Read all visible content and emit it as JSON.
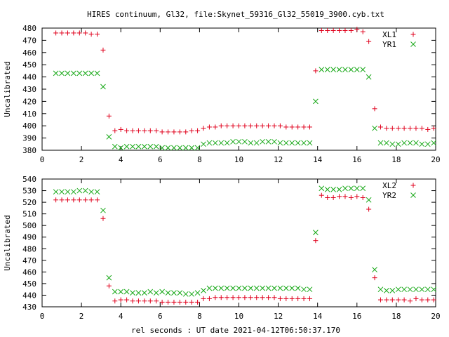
{
  "title": "HIRES continuum, Gl32, file:Skynet_59316_Gl32_55019_3900.cyb.txt",
  "xlabel": "rel seconds : UT date 2021-04-12T06:50:37.170",
  "colors": {
    "red": "#e0001c",
    "green": "#16a816"
  },
  "chart_data": [
    {
      "type": "scatter",
      "ylabel": "Uncalibrated",
      "xlim": [
        0,
        20
      ],
      "ylim": [
        380,
        480
      ],
      "xticks": [
        0,
        2,
        4,
        6,
        8,
        10,
        12,
        14,
        16,
        18,
        20
      ],
      "yticks": [
        380,
        390,
        400,
        410,
        420,
        430,
        440,
        450,
        460,
        470,
        480
      ],
      "legend_position": "top-right",
      "series": [
        {
          "name": "XL1",
          "marker": "plus",
          "color": "#e0001c",
          "x": [
            0.7,
            1.0,
            1.3,
            1.6,
            1.9,
            2.2,
            2.5,
            2.8,
            3.1,
            3.4,
            3.7,
            4.0,
            4.3,
            4.6,
            4.9,
            5.2,
            5.5,
            5.8,
            6.1,
            6.4,
            6.7,
            7.0,
            7.3,
            7.6,
            7.9,
            8.2,
            8.5,
            8.8,
            9.1,
            9.4,
            9.7,
            10.0,
            10.3,
            10.6,
            10.9,
            11.2,
            11.5,
            11.8,
            12.1,
            12.4,
            12.7,
            13.0,
            13.3,
            13.6,
            13.9,
            14.2,
            14.5,
            14.8,
            15.1,
            15.4,
            15.7,
            16.0,
            16.3,
            16.6,
            16.9,
            17.2,
            17.5,
            17.8,
            18.1,
            18.4,
            18.7,
            19.0,
            19.3,
            19.6,
            19.9
          ],
          "y": [
            476,
            476,
            476,
            476,
            476,
            476,
            475,
            475,
            462,
            408,
            396,
            397,
            396,
            396,
            396,
            396,
            396,
            396,
            395,
            395,
            395,
            395,
            395,
            396,
            396,
            398,
            399,
            399,
            400,
            400,
            400,
            400,
            400,
            400,
            400,
            400,
            400,
            400,
            400,
            399,
            399,
            399,
            399,
            399,
            445,
            478,
            478,
            478,
            478,
            478,
            478,
            479,
            477,
            469,
            414,
            399,
            398,
            398,
            398,
            398,
            398,
            398,
            398,
            397,
            398
          ]
        },
        {
          "name": "YR1",
          "marker": "cross",
          "color": "#16a816",
          "x": [
            0.7,
            1.0,
            1.3,
            1.6,
            1.9,
            2.2,
            2.5,
            2.8,
            3.1,
            3.4,
            3.7,
            4.0,
            4.3,
            4.6,
            4.9,
            5.2,
            5.5,
            5.8,
            6.1,
            6.4,
            6.7,
            7.0,
            7.3,
            7.6,
            7.9,
            8.2,
            8.5,
            8.8,
            9.1,
            9.4,
            9.7,
            10.0,
            10.3,
            10.6,
            10.9,
            11.2,
            11.5,
            11.8,
            12.1,
            12.4,
            12.7,
            13.0,
            13.3,
            13.6,
            13.9,
            14.2,
            14.5,
            14.8,
            15.1,
            15.4,
            15.7,
            16.0,
            16.3,
            16.6,
            16.9,
            17.2,
            17.5,
            17.8,
            18.1,
            18.4,
            18.7,
            19.0,
            19.3,
            19.6,
            19.9
          ],
          "y": [
            443,
            443,
            443,
            443,
            443,
            443,
            443,
            443,
            432,
            391,
            383,
            382,
            383,
            383,
            383,
            383,
            383,
            383,
            382,
            382,
            382,
            382,
            382,
            382,
            382,
            385,
            386,
            386,
            386,
            386,
            387,
            387,
            387,
            386,
            386,
            387,
            387,
            387,
            386,
            386,
            386,
            386,
            386,
            386,
            420,
            446,
            446,
            446,
            446,
            446,
            446,
            446,
            446,
            440,
            398,
            386,
            386,
            385,
            385,
            386,
            386,
            386,
            385,
            385,
            386
          ]
        }
      ]
    },
    {
      "type": "scatter",
      "ylabel": "Uncalibrated",
      "xlim": [
        0,
        20
      ],
      "ylim": [
        430,
        540
      ],
      "xticks": [
        0,
        2,
        4,
        6,
        8,
        10,
        12,
        14,
        16,
        18,
        20
      ],
      "yticks": [
        430,
        440,
        450,
        460,
        470,
        480,
        490,
        500,
        510,
        520,
        530,
        540
      ],
      "legend_position": "top-right",
      "series": [
        {
          "name": "XL2",
          "marker": "plus",
          "color": "#e0001c",
          "x": [
            0.7,
            1.0,
            1.3,
            1.6,
            1.9,
            2.2,
            2.5,
            2.8,
            3.1,
            3.4,
            3.7,
            4.0,
            4.3,
            4.6,
            4.9,
            5.2,
            5.5,
            5.8,
            6.1,
            6.4,
            6.7,
            7.0,
            7.3,
            7.6,
            7.9,
            8.2,
            8.5,
            8.8,
            9.1,
            9.4,
            9.7,
            10.0,
            10.3,
            10.6,
            10.9,
            11.2,
            11.5,
            11.8,
            12.1,
            12.4,
            12.7,
            13.0,
            13.3,
            13.6,
            13.9,
            14.2,
            14.5,
            14.8,
            15.1,
            15.4,
            15.7,
            16.0,
            16.3,
            16.6,
            16.9,
            17.2,
            17.5,
            17.8,
            18.1,
            18.4,
            18.7,
            19.0,
            19.3,
            19.6,
            19.9
          ],
          "y": [
            522,
            522,
            522,
            522,
            522,
            522,
            522,
            522,
            506,
            448,
            435,
            436,
            436,
            435,
            435,
            435,
            435,
            435,
            434,
            434,
            434,
            434,
            434,
            434,
            434,
            437,
            437,
            438,
            438,
            438,
            438,
            438,
            438,
            438,
            438,
            438,
            438,
            438,
            437,
            437,
            437,
            437,
            437,
            437,
            487,
            526,
            524,
            524,
            525,
            525,
            524,
            525,
            524,
            514,
            455,
            436,
            436,
            436,
            436,
            436,
            435,
            437,
            436,
            436,
            436
          ]
        },
        {
          "name": "YR2",
          "marker": "cross",
          "color": "#16a816",
          "x": [
            0.7,
            1.0,
            1.3,
            1.6,
            1.9,
            2.2,
            2.5,
            2.8,
            3.1,
            3.4,
            3.7,
            4.0,
            4.3,
            4.6,
            4.9,
            5.2,
            5.5,
            5.8,
            6.1,
            6.4,
            6.7,
            7.0,
            7.3,
            7.6,
            7.9,
            8.2,
            8.5,
            8.8,
            9.1,
            9.4,
            9.7,
            10.0,
            10.3,
            10.6,
            10.9,
            11.2,
            11.5,
            11.8,
            12.1,
            12.4,
            12.7,
            13.0,
            13.3,
            13.6,
            13.9,
            14.2,
            14.5,
            14.8,
            15.1,
            15.4,
            15.7,
            16.0,
            16.3,
            16.6,
            16.9,
            17.2,
            17.5,
            17.8,
            18.1,
            18.4,
            18.7,
            19.0,
            19.3,
            19.6,
            19.9
          ],
          "y": [
            529,
            529,
            529,
            529,
            530,
            530,
            529,
            529,
            513,
            455,
            443,
            443,
            443,
            442,
            442,
            442,
            443,
            442,
            443,
            442,
            442,
            442,
            441,
            441,
            442,
            444,
            446,
            446,
            446,
            446,
            446,
            446,
            446,
            446,
            446,
            446,
            446,
            446,
            446,
            446,
            446,
            446,
            445,
            445,
            494,
            532,
            531,
            531,
            531,
            532,
            532,
            532,
            532,
            522,
            462,
            445,
            444,
            444,
            445,
            445,
            445,
            445,
            445,
            445,
            445
          ]
        }
      ]
    }
  ]
}
